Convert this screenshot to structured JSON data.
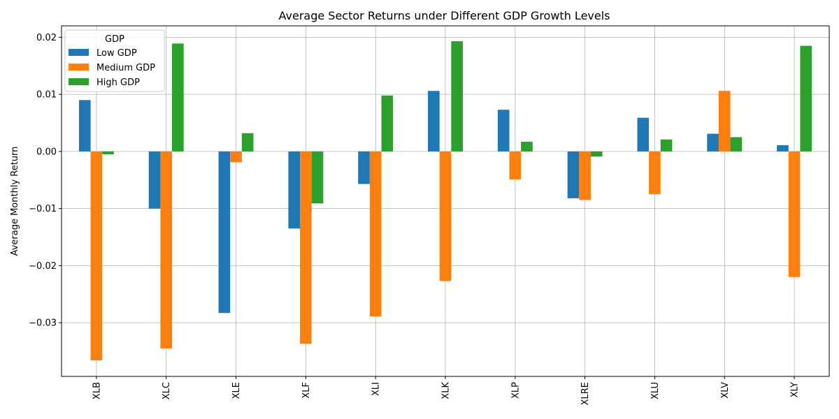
{
  "chart_data": {
    "type": "bar",
    "title": "Average Sector Returns under Different GDP Growth Levels",
    "xlabel": "",
    "ylabel": "Average Monthly Return",
    "categories": [
      "XLB",
      "XLC",
      "XLE",
      "XLF",
      "XLI",
      "XLK",
      "XLP",
      "XLRE",
      "XLU",
      "XLV",
      "XLY"
    ],
    "series": [
      {
        "name": "Low GDP",
        "color": "#1f77b4",
        "values": [
          0.009,
          -0.01,
          -0.0283,
          -0.0135,
          -0.0057,
          0.0106,
          0.0073,
          -0.0082,
          0.0059,
          0.0031,
          0.0011
        ]
      },
      {
        "name": "Medium GDP",
        "color": "#ff7f0e",
        "values": [
          -0.0366,
          -0.0345,
          -0.0019,
          -0.0337,
          -0.0289,
          -0.0227,
          -0.0049,
          -0.0085,
          -0.0075,
          0.0106,
          -0.022
        ]
      },
      {
        "name": "High GDP",
        "color": "#2ca02c",
        "values": [
          -0.0005,
          0.0189,
          0.0032,
          -0.0091,
          0.0098,
          0.0193,
          0.0017,
          -0.0009,
          0.0021,
          0.0025,
          0.0185
        ]
      }
    ],
    "ylim": [
      -0.0394,
      0.022
    ],
    "yticks": [
      0.02,
      0.01,
      0.0,
      -0.01,
      -0.02,
      -0.03
    ],
    "ytick_labels": [
      "0.02",
      "0.01",
      "0.00",
      "−0.01",
      "−0.02",
      "−0.03"
    ],
    "grid": true,
    "legend": {
      "title": "GDP",
      "placement": "top-left"
    }
  }
}
